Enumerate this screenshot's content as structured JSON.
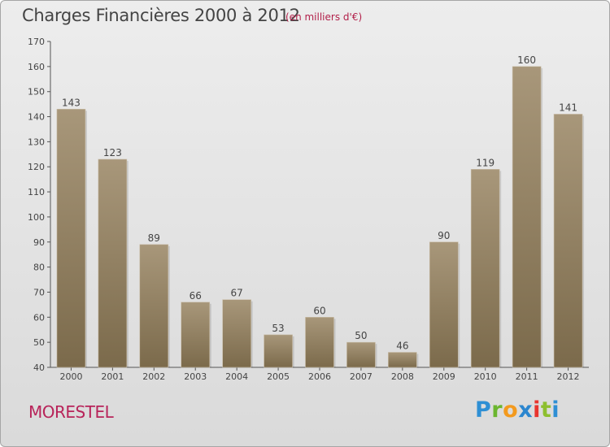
{
  "title": "Charges Financières 2000 à 2012",
  "unit_note": "(en milliers d'€)",
  "city": "MORESTEL",
  "logo": {
    "letters": [
      "P",
      "r",
      "o",
      "x",
      "i",
      "t",
      "i"
    ],
    "colors": [
      "#2e8fd4",
      "#6bb62f",
      "#f39a1e",
      "#2b86cf",
      "#e8352f",
      "#8dbf2f",
      "#2e8fd4"
    ]
  },
  "colors": {
    "bar_top": "#a8977a",
    "bar_bottom": "#7b6a4b",
    "text": "#444444",
    "accent": "#b8245a"
  },
  "chart_data": {
    "type": "bar",
    "title": "Charges Financières 2000 à 2012",
    "subtitle": "(en milliers d'€)",
    "xlabel": "",
    "ylabel": "",
    "categories": [
      "2000",
      "2001",
      "2002",
      "2003",
      "2004",
      "2005",
      "2006",
      "2007",
      "2008",
      "2009",
      "2010",
      "2011",
      "2012"
    ],
    "values": [
      143,
      123,
      89,
      66,
      67,
      53,
      60,
      50,
      46,
      90,
      119,
      160,
      141
    ],
    "ylim": [
      40,
      170
    ],
    "yticks": [
      40,
      50,
      60,
      70,
      80,
      90,
      100,
      110,
      120,
      130,
      140,
      150,
      160,
      170
    ],
    "grid": false,
    "legend": "none"
  }
}
